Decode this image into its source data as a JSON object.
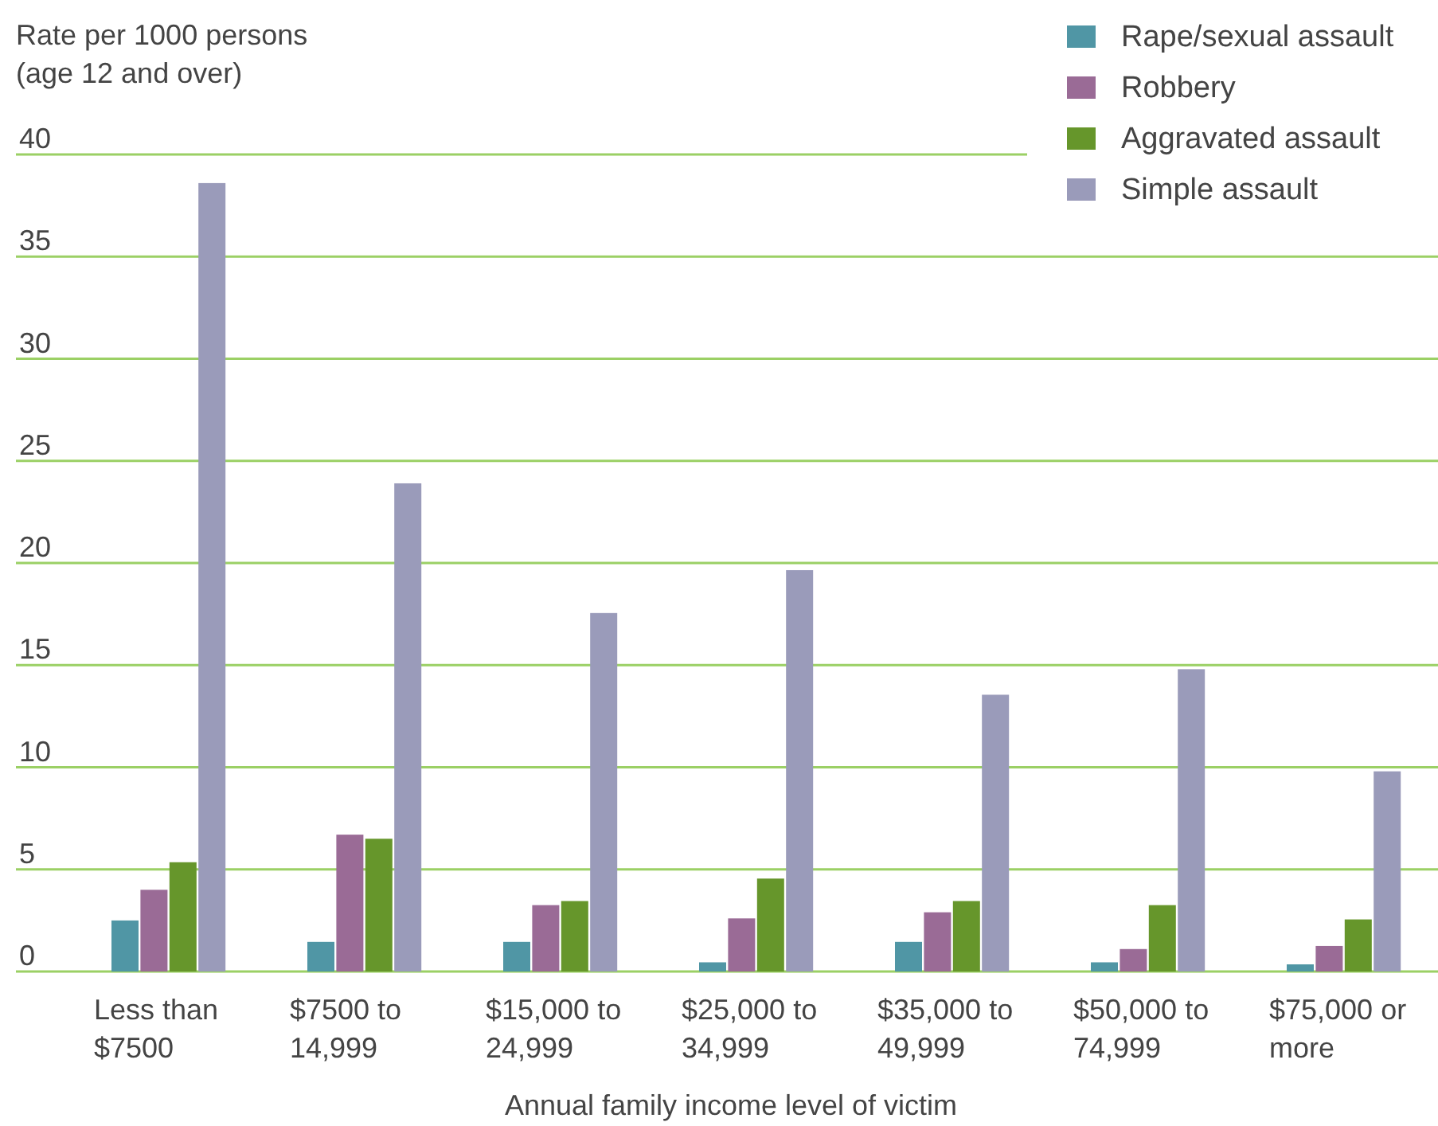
{
  "chart_data": {
    "type": "bar",
    "ylabel": "Rate per 1000 persons\n(age 12 and over)",
    "xlabel": "Annual family income level of victim",
    "categories": [
      "Less than\n$7500",
      "$7500 to\n14,999",
      "$15,000 to\n24,999",
      "$25,000 to\n34,999",
      "$35,000 to\n49,999",
      "$50,000 to\n74,999",
      "$75,000 or\nmore"
    ],
    "series": [
      {
        "name": "Rape/sexual assault",
        "color": "#5096a5",
        "values": [
          2.5,
          1.45,
          1.45,
          0.45,
          1.45,
          0.45,
          0.35
        ]
      },
      {
        "name": "Robbery",
        "color": "#9a6b96",
        "values": [
          4.0,
          6.7,
          3.25,
          2.6,
          2.9,
          1.1,
          1.25
        ]
      },
      {
        "name": "Aggravated assault",
        "color": "#66962b",
        "values": [
          5.35,
          6.5,
          3.45,
          4.55,
          3.45,
          3.25,
          2.55
        ]
      },
      {
        "name": "Simple assault",
        "color": "#9a9bba",
        "values": [
          38.6,
          23.9,
          17.55,
          19.65,
          13.55,
          14.8,
          9.8
        ]
      }
    ],
    "ylim": [
      0,
      40
    ],
    "yticks": [
      0,
      5,
      10,
      15,
      20,
      25,
      30,
      35,
      40
    ],
    "grid": "y",
    "legend": "top right"
  }
}
